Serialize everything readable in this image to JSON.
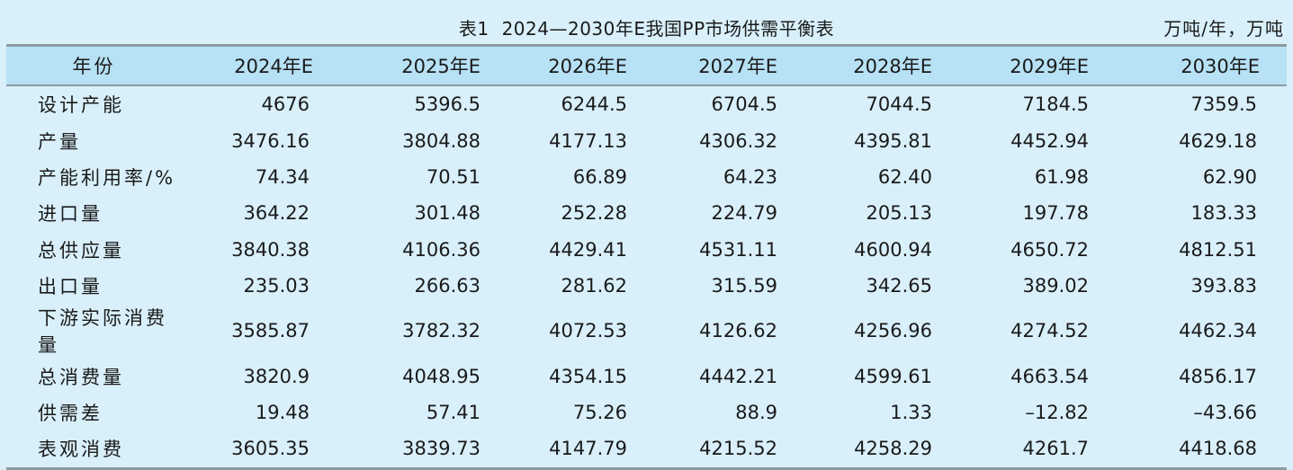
{
  "table": {
    "caption_number": "表1",
    "caption_title": "2024—2030年E我国PP市场供需平衡表",
    "unit": "万吨/年，万吨",
    "headers": [
      "年份",
      "2024年E",
      "2025年E",
      "2026年E",
      "2027年E",
      "2028年E",
      "2029年E",
      "2030年E"
    ],
    "rows": [
      {
        "label": "设计产能",
        "values": [
          "4676",
          "5396.5",
          "6244.5",
          "6704.5",
          "7044.5",
          "7184.5",
          "7359.5"
        ]
      },
      {
        "label": "产量",
        "values": [
          "3476.16",
          "3804.88",
          "4177.13",
          "4306.32",
          "4395.81",
          "4452.94",
          "4629.18"
        ]
      },
      {
        "label": "产能利用率/%",
        "values": [
          "74.34",
          "70.51",
          "66.89",
          "64.23",
          "62.40",
          "61.98",
          "62.90"
        ]
      },
      {
        "label": "进口量",
        "values": [
          "364.22",
          "301.48",
          "252.28",
          "224.79",
          "205.13",
          "197.78",
          "183.33"
        ]
      },
      {
        "label": "总供应量",
        "values": [
          "3840.38",
          "4106.36",
          "4429.41",
          "4531.11",
          "4600.94",
          "4650.72",
          "4812.51"
        ]
      },
      {
        "label": "出口量",
        "values": [
          "235.03",
          "266.63",
          "281.62",
          "315.59",
          "342.65",
          "389.02",
          "393.83"
        ]
      },
      {
        "label": "下游实际消费量",
        "values": [
          "3585.87",
          "3782.32",
          "4072.53",
          "4126.62",
          "4256.96",
          "4274.52",
          "4462.34"
        ]
      },
      {
        "label": "总消费量",
        "values": [
          "3820.9",
          "4048.95",
          "4354.15",
          "4442.21",
          "4599.61",
          "4663.54",
          "4856.17"
        ]
      },
      {
        "label": "供需差",
        "values": [
          "19.48",
          "57.41",
          "75.26",
          "88.9",
          "1.33",
          "–12.82",
          "–43.66"
        ]
      },
      {
        "label": "表观消费",
        "values": [
          "3605.35",
          "3839.73",
          "4147.79",
          "4215.52",
          "4258.29",
          "4261.7",
          "4418.68"
        ]
      }
    ]
  }
}
